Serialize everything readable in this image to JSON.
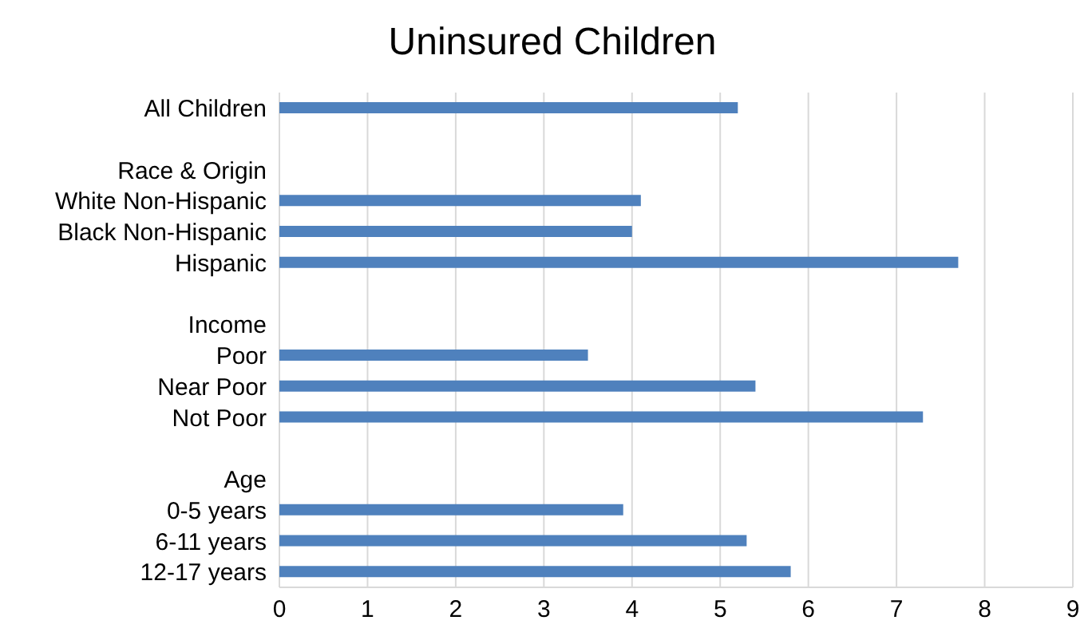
{
  "chart_data": {
    "type": "bar",
    "orientation": "horizontal",
    "title": "Uninsured Children",
    "categories": [
      "All Children",
      null,
      "Race & Origin",
      "White Non-Hispanic",
      "Black Non-Hispanic",
      "Hispanic",
      null,
      "Income",
      "Poor",
      "Near Poor",
      "Not Poor",
      null,
      "Age",
      "0-5 years",
      "6-11 years",
      "12-17 years"
    ],
    "values": [
      5.2,
      null,
      null,
      4.1,
      4.0,
      7.7,
      null,
      null,
      3.5,
      5.4,
      7.3,
      null,
      null,
      3.9,
      5.3,
      5.8
    ],
    "color": "#4f81bd",
    "xlim": [
      0,
      9
    ],
    "xticks": [
      0,
      1,
      2,
      3,
      4,
      5,
      6,
      7,
      8,
      9
    ],
    "grid": "x",
    "legend": false
  }
}
